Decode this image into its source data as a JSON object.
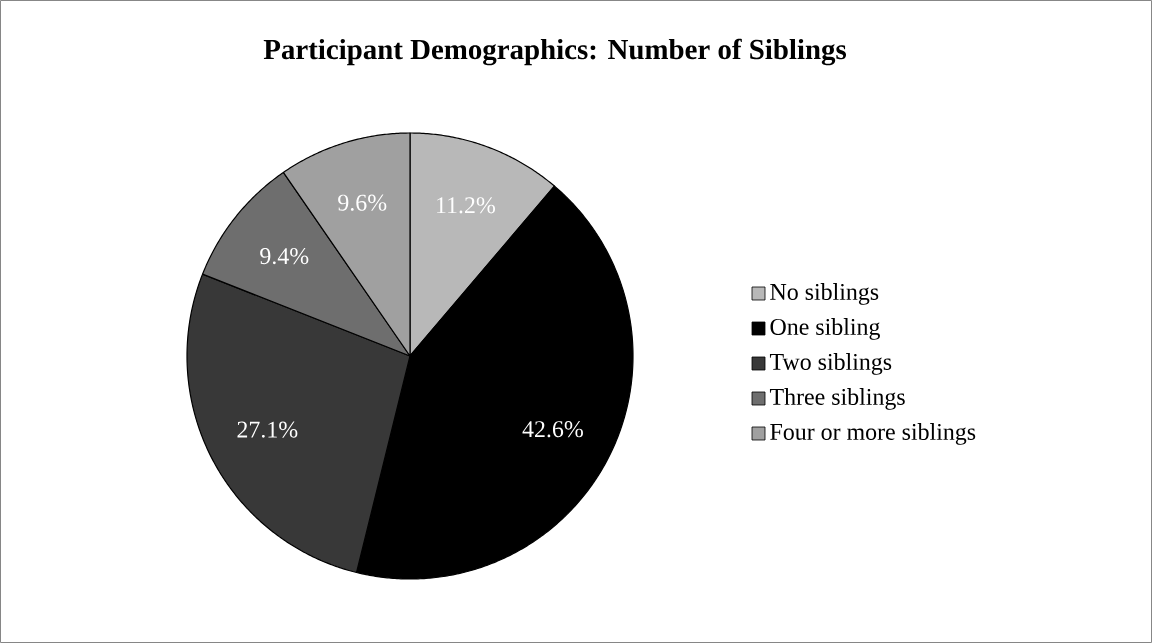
{
  "chart_data": {
    "type": "pie",
    "title": "Participant Demographics: Number of Siblings",
    "categories": [
      "No siblings",
      "One sibling",
      "Two siblings",
      "Three siblings",
      "Four or more siblings"
    ],
    "values": [
      11.2,
      42.6,
      27.1,
      9.4,
      9.6
    ],
    "colors": [
      "#b8b8b8",
      "#000000",
      "#383838",
      "#6e6e6e",
      "#a0a0a0"
    ],
    "value_labels": [
      "11.2%",
      "42.6%",
      "27.1%",
      "9.4%",
      "9.6%"
    ],
    "legend": "right"
  }
}
